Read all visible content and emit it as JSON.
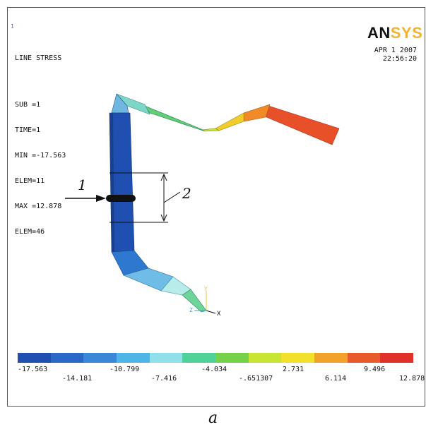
{
  "window": {
    "index_label": "1"
  },
  "info": {
    "lines": [
      "LINE STRESS",
      "SUB =1",
      "TIME=1",
      "MIN =-17.563",
      "ELEM=11",
      "MAX =12.878",
      "ELEM=46"
    ]
  },
  "logo": {
    "part1": "AN",
    "part2": "SYS"
  },
  "date": {
    "date": "APR  1 2007",
    "time": "22:56:20"
  },
  "annotations": {
    "label_1": "1",
    "label_2": "2"
  },
  "triad": {
    "x": "X",
    "y": "Y",
    "z": "Z"
  },
  "legend": {
    "colors": [
      "#1f4fb0",
      "#2a68c8",
      "#3a87d8",
      "#4fb4e6",
      "#8fe0ea",
      "#4fd19a",
      "#76d04a",
      "#c9e534",
      "#f2e02a",
      "#f2a228",
      "#e85a2a",
      "#e0302a"
    ],
    "top_ticks": [
      "-17.563",
      "-10.799",
      "-4.034",
      "2.731",
      "9.496"
    ],
    "bottom_ticks": [
      "-14.181",
      "-7.416",
      "-.651307",
      "6.114",
      "12.878"
    ]
  },
  "caption": "a"
}
